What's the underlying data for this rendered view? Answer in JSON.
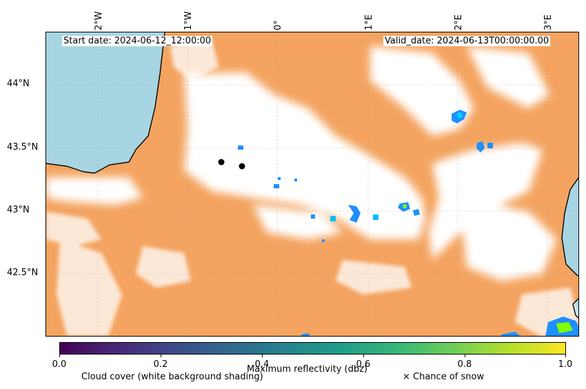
{
  "start_date_label": "Start date: 2024-06-12_12:00:00",
  "valid_date_label": "Valid_date: 2024-06-13T00:00:00.00",
  "longitude_ticks": [
    "2°W",
    "1°W",
    "0°",
    "1°E",
    "2°E",
    "3°E"
  ],
  "latitude_ticks": [
    "44°N",
    "43.5°N",
    "43°N",
    "42.5°N"
  ],
  "colorbar": {
    "label": "Maximum reflectivity (dbz)",
    "ticks": [
      "0.0",
      "0.2",
      "0.4",
      "0.6",
      "0.8",
      "1.0"
    ],
    "colormap": "viridis",
    "range": [
      0.0,
      1.0
    ]
  },
  "legend": {
    "cloud_cover": "Cloud cover (white background shading)",
    "snow": "× Chance of snow"
  },
  "colors": {
    "sea": "#a8d5e2",
    "cloud_free_land": "#f4a460",
    "cloud_cover": "#ffffff",
    "coastline": "#000000",
    "reflectivity_low": "#1e90ff",
    "reflectivity_high": "#7fff00"
  }
}
